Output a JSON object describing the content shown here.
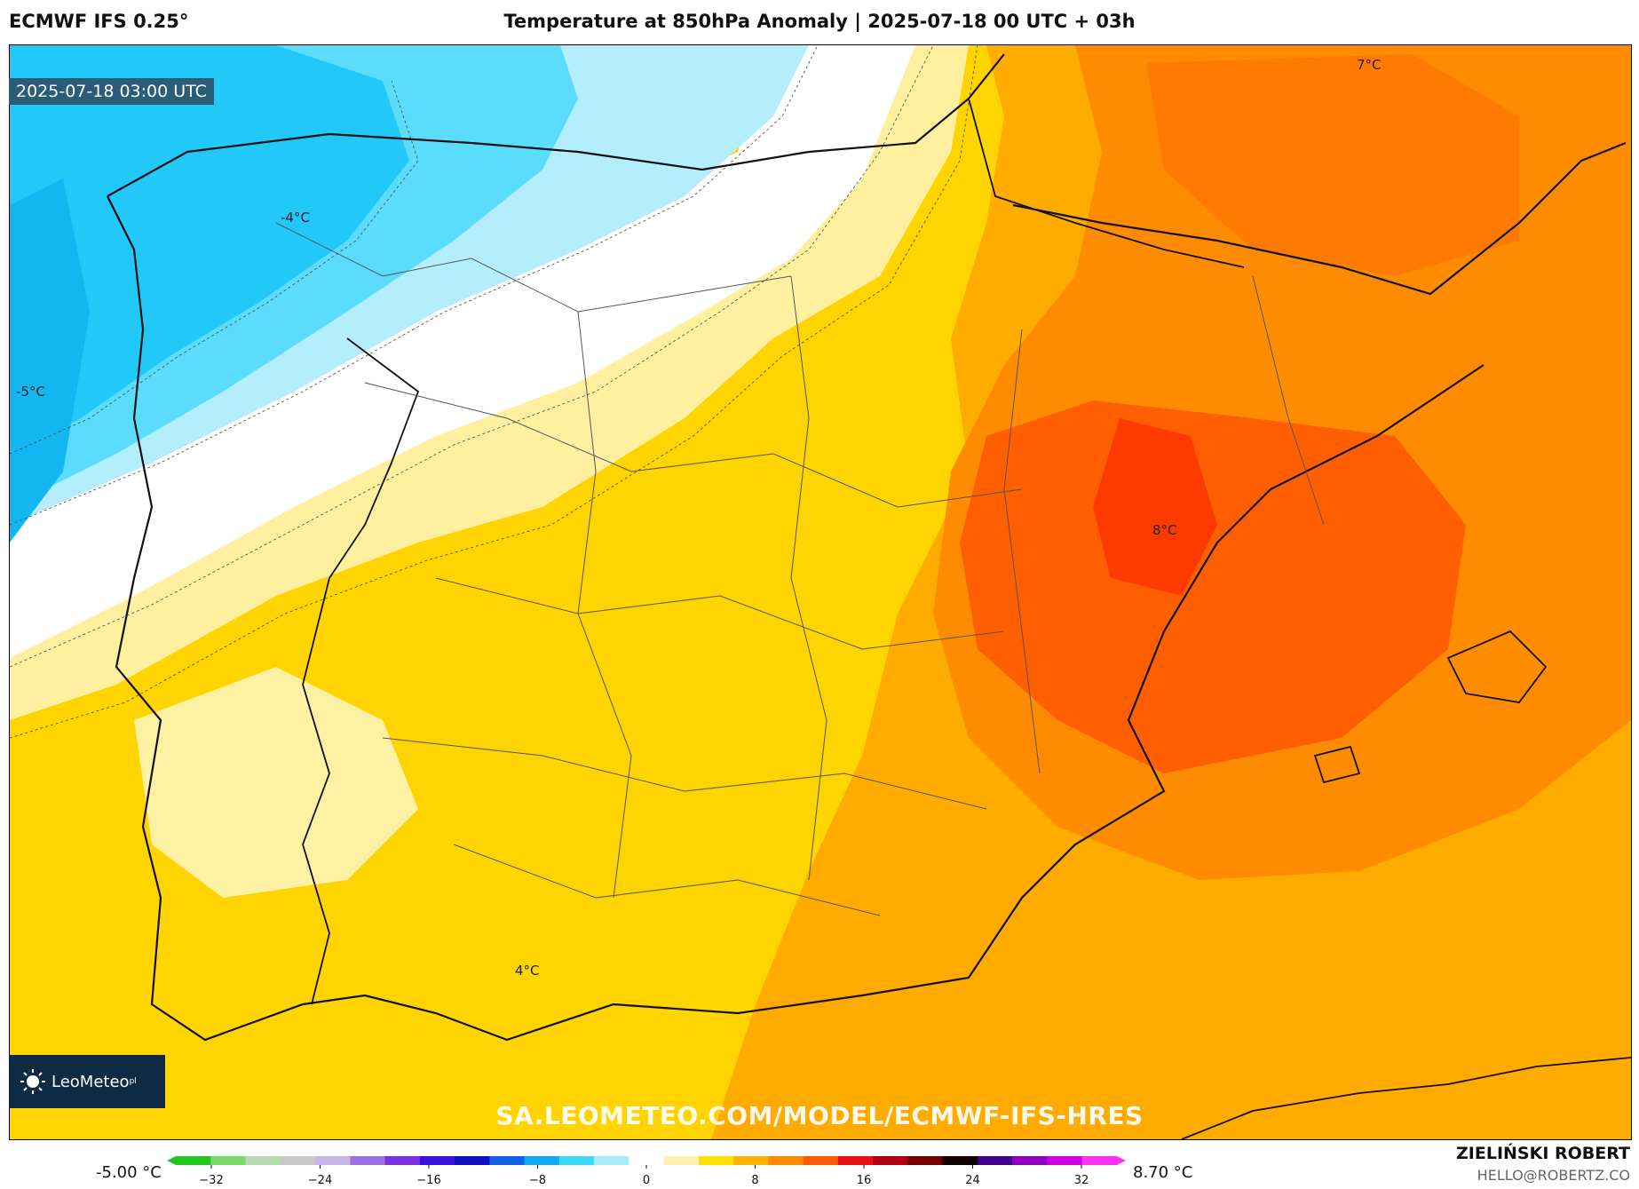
{
  "header": {
    "model": "ECMWF IFS 0.25°",
    "title": "Temperature at 850hPa Anomaly | 2025-07-18 00 UTC + 03h"
  },
  "map": {
    "timestamp": "2025-07-18 03:00 UTC",
    "labels": {
      "a": "7°C",
      "b": "-4°C",
      "c": "-5°C",
      "d": "8°C",
      "e": "4°C"
    },
    "watermark": "SA.LEOMETEO.COM/MODEL/ECMWF-IFS-HRES",
    "logo": {
      "name": "LeoMeteo",
      "suffix": "pl"
    }
  },
  "colorbar": {
    "min_label": "-5.00 °C",
    "max_label": "8.70 °C",
    "ticks": [
      "−32",
      "−24",
      "−16",
      "−8",
      "0",
      "8",
      "16",
      "24",
      "32"
    ],
    "colors": [
      "#22c41e",
      "#7ad86a",
      "#b5dcb0",
      "#c8c8c8",
      "#c8b4e6",
      "#a070e0",
      "#7a30e0",
      "#3a10e0",
      "#1010c0",
      "#1060e8",
      "#14a8f0",
      "#40d8f8",
      "#a8ecfa",
      "#ffffff",
      "#fff2b0",
      "#ffe000",
      "#ffb400",
      "#ff8a00",
      "#ff5a00",
      "#e81010",
      "#b00010",
      "#700000",
      "#100000",
      "#40008a",
      "#9000c0",
      "#d000e0",
      "#ff30f0"
    ]
  },
  "credit": {
    "name": "ZIELIŃSKI ROBERT",
    "email": "HELLO@ROBERTZ.CO"
  }
}
